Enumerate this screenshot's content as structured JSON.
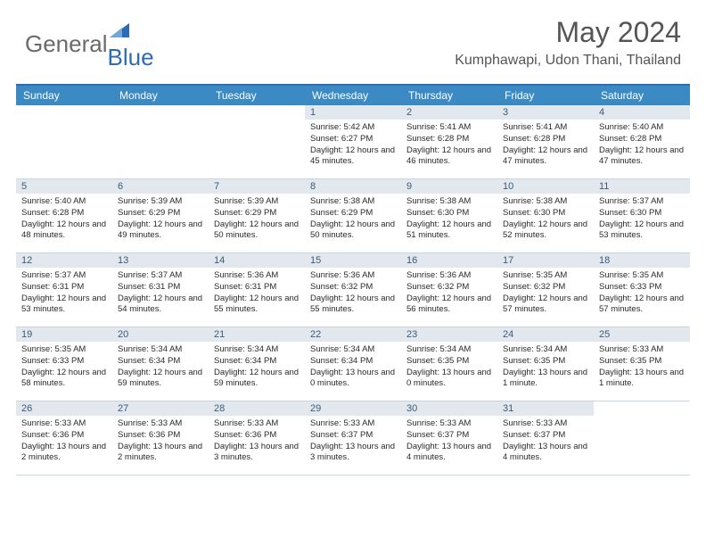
{
  "logo": {
    "text1": "General",
    "text2": "Blue"
  },
  "title": "May 2024",
  "location": "Kumphawapi, Udon Thani, Thailand",
  "colors": {
    "header_bar": "#3b8ac4",
    "accent_line": "#2a6db5",
    "day_number_bg": "#e2e8ed",
    "day_number_fg": "#3a5a7a",
    "text": "#333333",
    "title_fg": "#555555",
    "background": "#ffffff"
  },
  "typography": {
    "month_title_size": 32,
    "location_size": 16,
    "weekday_size": 12,
    "daynum_size": 11,
    "dayinfo_size": 9.5,
    "font_family": "Arial"
  },
  "weekdays": [
    "Sunday",
    "Monday",
    "Tuesday",
    "Wednesday",
    "Thursday",
    "Friday",
    "Saturday"
  ],
  "weeks": [
    [
      {
        "empty": true
      },
      {
        "empty": true
      },
      {
        "empty": true
      },
      {
        "day": "1",
        "sunrise": "5:42 AM",
        "sunset": "6:27 PM",
        "daylight": "12 hours and 45 minutes."
      },
      {
        "day": "2",
        "sunrise": "5:41 AM",
        "sunset": "6:28 PM",
        "daylight": "12 hours and 46 minutes."
      },
      {
        "day": "3",
        "sunrise": "5:41 AM",
        "sunset": "6:28 PM",
        "daylight": "12 hours and 47 minutes."
      },
      {
        "day": "4",
        "sunrise": "5:40 AM",
        "sunset": "6:28 PM",
        "daylight": "12 hours and 47 minutes."
      }
    ],
    [
      {
        "day": "5",
        "sunrise": "5:40 AM",
        "sunset": "6:28 PM",
        "daylight": "12 hours and 48 minutes."
      },
      {
        "day": "6",
        "sunrise": "5:39 AM",
        "sunset": "6:29 PM",
        "daylight": "12 hours and 49 minutes."
      },
      {
        "day": "7",
        "sunrise": "5:39 AM",
        "sunset": "6:29 PM",
        "daylight": "12 hours and 50 minutes."
      },
      {
        "day": "8",
        "sunrise": "5:38 AM",
        "sunset": "6:29 PM",
        "daylight": "12 hours and 50 minutes."
      },
      {
        "day": "9",
        "sunrise": "5:38 AM",
        "sunset": "6:30 PM",
        "daylight": "12 hours and 51 minutes."
      },
      {
        "day": "10",
        "sunrise": "5:38 AM",
        "sunset": "6:30 PM",
        "daylight": "12 hours and 52 minutes."
      },
      {
        "day": "11",
        "sunrise": "5:37 AM",
        "sunset": "6:30 PM",
        "daylight": "12 hours and 53 minutes."
      }
    ],
    [
      {
        "day": "12",
        "sunrise": "5:37 AM",
        "sunset": "6:31 PM",
        "daylight": "12 hours and 53 minutes."
      },
      {
        "day": "13",
        "sunrise": "5:37 AM",
        "sunset": "6:31 PM",
        "daylight": "12 hours and 54 minutes."
      },
      {
        "day": "14",
        "sunrise": "5:36 AM",
        "sunset": "6:31 PM",
        "daylight": "12 hours and 55 minutes."
      },
      {
        "day": "15",
        "sunrise": "5:36 AM",
        "sunset": "6:32 PM",
        "daylight": "12 hours and 55 minutes."
      },
      {
        "day": "16",
        "sunrise": "5:36 AM",
        "sunset": "6:32 PM",
        "daylight": "12 hours and 56 minutes."
      },
      {
        "day": "17",
        "sunrise": "5:35 AM",
        "sunset": "6:32 PM",
        "daylight": "12 hours and 57 minutes."
      },
      {
        "day": "18",
        "sunrise": "5:35 AM",
        "sunset": "6:33 PM",
        "daylight": "12 hours and 57 minutes."
      }
    ],
    [
      {
        "day": "19",
        "sunrise": "5:35 AM",
        "sunset": "6:33 PM",
        "daylight": "12 hours and 58 minutes."
      },
      {
        "day": "20",
        "sunrise": "5:34 AM",
        "sunset": "6:34 PM",
        "daylight": "12 hours and 59 minutes."
      },
      {
        "day": "21",
        "sunrise": "5:34 AM",
        "sunset": "6:34 PM",
        "daylight": "12 hours and 59 minutes."
      },
      {
        "day": "22",
        "sunrise": "5:34 AM",
        "sunset": "6:34 PM",
        "daylight": "13 hours and 0 minutes."
      },
      {
        "day": "23",
        "sunrise": "5:34 AM",
        "sunset": "6:35 PM",
        "daylight": "13 hours and 0 minutes."
      },
      {
        "day": "24",
        "sunrise": "5:34 AM",
        "sunset": "6:35 PM",
        "daylight": "13 hours and 1 minute."
      },
      {
        "day": "25",
        "sunrise": "5:33 AM",
        "sunset": "6:35 PM",
        "daylight": "13 hours and 1 minute."
      }
    ],
    [
      {
        "day": "26",
        "sunrise": "5:33 AM",
        "sunset": "6:36 PM",
        "daylight": "13 hours and 2 minutes."
      },
      {
        "day": "27",
        "sunrise": "5:33 AM",
        "sunset": "6:36 PM",
        "daylight": "13 hours and 2 minutes."
      },
      {
        "day": "28",
        "sunrise": "5:33 AM",
        "sunset": "6:36 PM",
        "daylight": "13 hours and 3 minutes."
      },
      {
        "day": "29",
        "sunrise": "5:33 AM",
        "sunset": "6:37 PM",
        "daylight": "13 hours and 3 minutes."
      },
      {
        "day": "30",
        "sunrise": "5:33 AM",
        "sunset": "6:37 PM",
        "daylight": "13 hours and 4 minutes."
      },
      {
        "day": "31",
        "sunrise": "5:33 AM",
        "sunset": "6:37 PM",
        "daylight": "13 hours and 4 minutes."
      },
      {
        "empty": true
      }
    ]
  ],
  "labels": {
    "sunrise": "Sunrise:",
    "sunset": "Sunset:",
    "daylight": "Daylight:"
  }
}
